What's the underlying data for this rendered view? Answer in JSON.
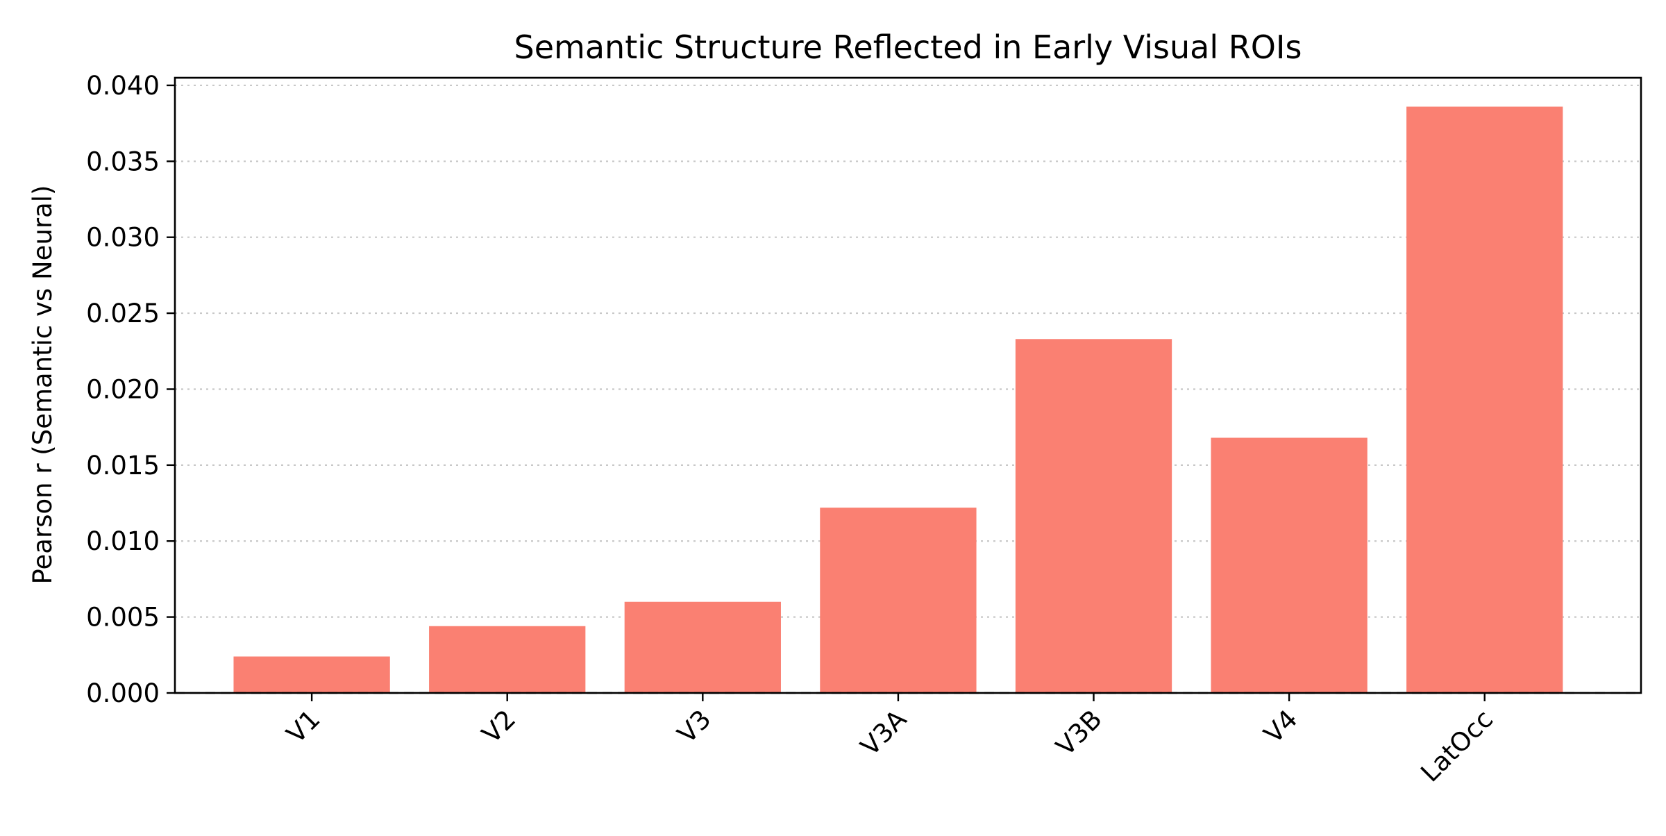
{
  "chart_data": {
    "type": "bar",
    "title": "Semantic Structure Reflected in Early Visual ROIs",
    "xlabel": "",
    "ylabel": "Pearson r (Semantic vs Neural)",
    "categories": [
      "V1",
      "V2",
      "V3",
      "V3A",
      "V3B",
      "V4",
      "LatOcc"
    ],
    "values": [
      0.0024,
      0.0044,
      0.006,
      0.0122,
      0.0233,
      0.0168,
      0.0386
    ],
    "ylim": [
      0.0,
      0.0405
    ],
    "yticks": [
      0.0,
      0.005,
      0.01,
      0.015,
      0.02,
      0.025,
      0.03,
      0.035,
      0.04
    ],
    "ytick_labels": [
      "0.000",
      "0.005",
      "0.010",
      "0.015",
      "0.020",
      "0.025",
      "0.030",
      "0.035",
      "0.040"
    ],
    "bar_color": "#fa8072",
    "grid": "y-axis, dotted",
    "reference_line": {
      "y": 0,
      "style": "dashed",
      "color": "#555555"
    },
    "xtick_rotation_deg": 45,
    "legend": "none"
  }
}
